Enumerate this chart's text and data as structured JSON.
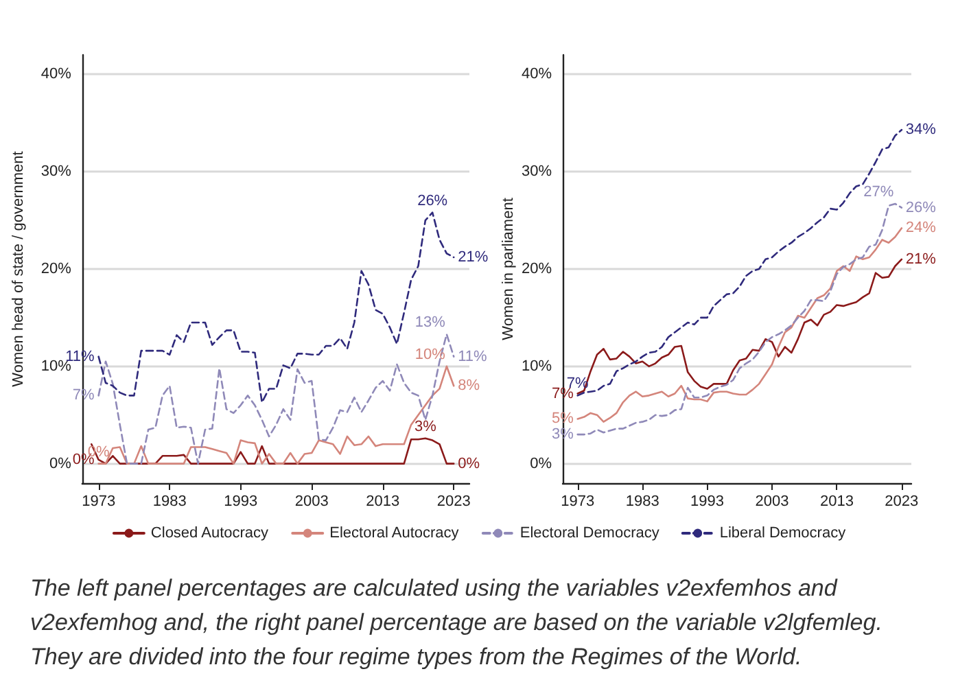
{
  "chart_data": [
    {
      "type": "line",
      "ylabel": "Women head of state / government",
      "x": [
        1973,
        1974,
        1975,
        1976,
        1977,
        1978,
        1979,
        1980,
        1981,
        1982,
        1983,
        1984,
        1985,
        1986,
        1987,
        1988,
        1989,
        1990,
        1991,
        1992,
        1993,
        1994,
        1995,
        1996,
        1997,
        1998,
        1999,
        2000,
        2001,
        2002,
        2003,
        2004,
        2005,
        2006,
        2007,
        2008,
        2009,
        2010,
        2011,
        2012,
        2013,
        2014,
        2015,
        2016,
        2017,
        2018,
        2019,
        2020,
        2021,
        2022,
        2023
      ],
      "xlim": [
        1970.7,
        2025.2
      ],
      "xticks": [
        1973,
        1983,
        1993,
        2003,
        2013,
        2023
      ],
      "ylim": [
        -2,
        42
      ],
      "yticks": [
        {
          "value": 0,
          "label": "0%"
        },
        {
          "value": 10,
          "label": "10%"
        },
        {
          "value": 20,
          "label": "20%"
        },
        {
          "value": 30,
          "label": "30%"
        },
        {
          "value": 40,
          "label": "40%"
        }
      ],
      "grid": "y",
      "legend": false,
      "marker": "none",
      "series": [
        {
          "color": "#8b1a1a",
          "line_style": "solid",
          "x": [
            1972,
            1973,
            1974,
            1975,
            1976,
            1977,
            1978,
            1979,
            1980,
            1981,
            1982,
            1983,
            1984,
            1985,
            1986,
            1987,
            1988,
            1989,
            1990,
            1991,
            1992,
            1993,
            1994,
            1995,
            1996,
            1997,
            1998,
            1999,
            2000,
            2001,
            2002,
            2003,
            2004,
            2005,
            2006,
            2007,
            2008,
            2009,
            2010,
            2011,
            2012,
            2013,
            2014,
            2015,
            2016,
            2017,
            2018,
            2019,
            2020,
            2021,
            2022,
            2023
          ],
          "values": [
            2,
            0.4,
            0,
            0.8,
            0,
            0,
            0,
            0,
            0,
            0,
            0.8,
            0.8,
            0.8,
            0.9,
            0,
            0,
            0,
            0,
            0,
            0,
            0,
            1.2,
            0,
            0,
            1.8,
            0,
            0,
            0,
            0,
            0,
            0,
            0,
            0,
            0,
            0,
            0,
            0,
            0,
            0,
            0,
            0,
            0,
            0,
            0,
            0,
            2.5,
            2.5,
            2.6,
            2.4,
            2,
            0,
            0
          ],
          "value_labels": [
            null,
            "0%",
            null,
            null,
            null,
            null,
            null,
            null,
            null,
            null,
            null,
            null,
            null,
            null,
            null,
            null,
            null,
            null,
            null,
            null,
            null,
            null,
            null,
            null,
            null,
            null,
            null,
            null,
            null,
            null,
            null,
            null,
            null,
            null,
            null,
            null,
            null,
            null,
            null,
            null,
            null,
            null,
            null,
            null,
            null,
            null,
            null,
            "3%",
            null,
            null,
            null,
            "0%"
          ]
        },
        {
          "color": "#d4857b",
          "line_style": "solid",
          "values": [
            0,
            0,
            1.6,
            1.7,
            0,
            0,
            1.8,
            0,
            0,
            0,
            0,
            0,
            0,
            1.7,
            1.7,
            1.7,
            1.5,
            1.3,
            1.1,
            0,
            2.4,
            2.2,
            2.1,
            0,
            1,
            0,
            0,
            1.1,
            0,
            1,
            1.1,
            2.4,
            2.2,
            2,
            1,
            2.8,
            1.9,
            2,
            2.8,
            1.8,
            2,
            2,
            2,
            2,
            4,
            5,
            6,
            7,
            7.7,
            10,
            8
          ],
          "value_labels": [
            "0%",
            null,
            null,
            null,
            null,
            null,
            null,
            null,
            null,
            null,
            null,
            null,
            null,
            null,
            null,
            null,
            null,
            null,
            null,
            null,
            null,
            null,
            null,
            null,
            null,
            null,
            null,
            null,
            null,
            null,
            null,
            null,
            null,
            null,
            null,
            null,
            null,
            null,
            null,
            null,
            null,
            null,
            null,
            null,
            null,
            null,
            null,
            null,
            null,
            "10%",
            "8%"
          ]
        },
        {
          "color": "#8f89b8",
          "line_style": "dashed",
          "values": [
            7,
            10.5,
            8.2,
            4,
            0,
            0,
            0,
            3.5,
            3.7,
            7,
            8,
            3.7,
            3.8,
            3.7,
            0,
            3.5,
            3.6,
            9.8,
            5.6,
            5.2,
            6,
            7,
            6,
            4.5,
            2.8,
            4,
            5.6,
            4.5,
            9.7,
            8.3,
            8.5,
            2.5,
            2.4,
            3.7,
            5.5,
            5.3,
            6.8,
            5.3,
            6.5,
            7.8,
            8.5,
            7.5,
            10.2,
            8.3,
            7.3,
            7,
            4.5,
            7,
            10.5,
            13.3,
            11
          ],
          "value_labels": [
            "7%",
            null,
            null,
            null,
            null,
            null,
            null,
            null,
            null,
            null,
            null,
            null,
            null,
            null,
            null,
            null,
            null,
            null,
            null,
            null,
            null,
            null,
            null,
            null,
            null,
            null,
            null,
            null,
            null,
            null,
            null,
            null,
            null,
            null,
            null,
            null,
            null,
            null,
            null,
            null,
            null,
            null,
            null,
            null,
            null,
            null,
            null,
            null,
            null,
            "13%",
            "11%"
          ]
        },
        {
          "color": "#2f2a7c",
          "line_style": "dashed",
          "values": [
            11,
            8.3,
            8,
            7.3,
            7,
            7,
            11.6,
            11.6,
            11.6,
            11.6,
            11.2,
            13.2,
            12.5,
            14.5,
            14.5,
            14.5,
            12.2,
            13,
            13.7,
            13.7,
            11.5,
            11.5,
            11.4,
            6.3,
            7.7,
            7.7,
            10.1,
            9.8,
            11.3,
            11.3,
            11.2,
            11.2,
            12.1,
            12.1,
            12.9,
            11.8,
            14.5,
            19.8,
            18.4,
            15.8,
            15.4,
            14,
            12.3,
            15.5,
            18.9,
            20.3,
            25,
            25.8,
            23,
            21.6,
            21.2
          ],
          "value_labels": [
            "11%",
            null,
            null,
            null,
            null,
            null,
            null,
            null,
            null,
            null,
            null,
            null,
            null,
            null,
            null,
            null,
            null,
            null,
            null,
            null,
            null,
            null,
            null,
            null,
            null,
            null,
            null,
            null,
            null,
            null,
            null,
            null,
            null,
            null,
            null,
            null,
            null,
            null,
            null,
            null,
            null,
            null,
            null,
            null,
            null,
            null,
            null,
            "26%",
            null,
            null,
            "21%"
          ]
        }
      ]
    },
    {
      "type": "line",
      "ylabel": "Women in parliament",
      "x": [
        1973,
        1974,
        1975,
        1976,
        1977,
        1978,
        1979,
        1980,
        1981,
        1982,
        1983,
        1984,
        1985,
        1986,
        1987,
        1988,
        1989,
        1990,
        1991,
        1992,
        1993,
        1994,
        1995,
        1996,
        1997,
        1998,
        1999,
        2000,
        2001,
        2002,
        2003,
        2004,
        2005,
        2006,
        2007,
        2008,
        2009,
        2010,
        2011,
        2012,
        2013,
        2014,
        2015,
        2016,
        2017,
        2018,
        2019,
        2020,
        2021,
        2022,
        2023
      ],
      "xlim": [
        1970.7,
        2024.5
      ],
      "xticks": [
        1973,
        1983,
        1993,
        2003,
        2013,
        2023
      ],
      "ylim": [
        -2,
        42
      ],
      "yticks": [
        {
          "value": 0,
          "label": "0%"
        },
        {
          "value": 10,
          "label": "10%"
        },
        {
          "value": 20,
          "label": "20%"
        },
        {
          "value": 30,
          "label": "30%"
        },
        {
          "value": 40,
          "label": "40%"
        }
      ],
      "grid": "y",
      "legend": "bottom",
      "marker": "none",
      "annotations": [
        "The left panel percentages are calculated using the variables v2exfemhos and v2exfemhog and, the right panel percentage are based on the variable v2lgfemleg. They are divided into the four regime types from the Regimes of the World."
      ],
      "series": [
        {
          "name": "Closed Autocracy",
          "color": "#8b1a1a",
          "line_style": "solid",
          "values": [
            7.2,
            7.5,
            9.5,
            11.2,
            11.8,
            10.7,
            10.8,
            11.5,
            11,
            10.3,
            10.5,
            10,
            10.3,
            10.9,
            11.2,
            12,
            12.1,
            9.4,
            8.5,
            7.9,
            7.7,
            8.2,
            8.2,
            8.2,
            9.6,
            10.6,
            10.8,
            11.7,
            11.6,
            12.8,
            12.5,
            11,
            12,
            11.4,
            12.8,
            14.5,
            14.8,
            14.2,
            15.3,
            15.6,
            16.3,
            16.2,
            16.4,
            16.6,
            17.1,
            17.5,
            19.6,
            19.1,
            19.2,
            20.3,
            21
          ],
          "value_labels": [
            "7%",
            null,
            null,
            null,
            null,
            null,
            null,
            null,
            null,
            null,
            null,
            null,
            null,
            null,
            null,
            null,
            null,
            null,
            null,
            null,
            null,
            null,
            null,
            null,
            null,
            null,
            null,
            null,
            null,
            null,
            null,
            null,
            null,
            null,
            null,
            null,
            null,
            null,
            null,
            null,
            null,
            null,
            null,
            null,
            null,
            null,
            null,
            null,
            null,
            null,
            "21%"
          ]
        },
        {
          "name": "Electoral Autocracy",
          "color": "#d4857b",
          "line_style": "solid",
          "values": [
            4.6,
            4.8,
            5.2,
            5,
            4.3,
            4.7,
            5.2,
            6.3,
            7,
            7.4,
            6.9,
            7,
            7.2,
            7.4,
            6.9,
            7.2,
            8,
            6.7,
            6.6,
            6.6,
            6.4,
            7.3,
            7.4,
            7.4,
            7.2,
            7.1,
            7.1,
            7.6,
            8.2,
            9.2,
            10.2,
            12,
            13.5,
            14,
            15.2,
            15,
            16,
            17,
            17.3,
            18,
            19.8,
            20.3,
            19.8,
            21.3,
            21,
            21.2,
            22,
            23,
            22.7,
            23.3,
            24.2
          ],
          "value_labels": [
            "5%",
            null,
            null,
            null,
            null,
            null,
            null,
            null,
            null,
            null,
            null,
            null,
            null,
            null,
            null,
            null,
            null,
            null,
            null,
            null,
            null,
            null,
            null,
            null,
            null,
            null,
            null,
            null,
            null,
            null,
            null,
            null,
            null,
            null,
            null,
            null,
            null,
            null,
            null,
            null,
            null,
            null,
            null,
            null,
            null,
            null,
            null,
            null,
            null,
            null,
            "24%"
          ]
        },
        {
          "name": "Electoral Democracy",
          "color": "#8f89b8",
          "line_style": "dashed",
          "values": [
            3,
            3,
            3.1,
            3.5,
            3.2,
            3.4,
            3.6,
            3.6,
            3.9,
            4.2,
            4.3,
            4.5,
            5,
            4.9,
            5,
            5.5,
            5.6,
            7.8,
            6.8,
            6.8,
            7,
            7.6,
            7.9,
            8.1,
            8.6,
            9.8,
            10.3,
            10.7,
            11.5,
            12.5,
            13,
            13.3,
            13.7,
            14.2,
            15,
            15.7,
            16.8,
            16.8,
            16.7,
            17.7,
            19.5,
            20.2,
            20.5,
            21,
            21.2,
            22.3,
            22.5,
            24,
            26.5,
            26.7,
            26.3
          ],
          "value_labels": [
            "3%",
            null,
            null,
            null,
            null,
            null,
            null,
            null,
            null,
            null,
            null,
            null,
            null,
            null,
            null,
            null,
            null,
            null,
            null,
            null,
            null,
            null,
            null,
            null,
            null,
            null,
            null,
            null,
            null,
            null,
            null,
            null,
            null,
            null,
            null,
            null,
            null,
            null,
            null,
            null,
            null,
            null,
            null,
            null,
            null,
            null,
            null,
            null,
            null,
            "27%",
            "26%"
          ]
        },
        {
          "name": "Liberal Democracy",
          "color": "#2f2a7c",
          "line_style": "dashed",
          "values": [
            7,
            7.3,
            7.4,
            7.5,
            8,
            8.2,
            9.5,
            9.8,
            10.2,
            10.5,
            11,
            11.4,
            11.5,
            12,
            13,
            13.5,
            14,
            14.5,
            14.3,
            15,
            15,
            16.2,
            16.8,
            17.4,
            17.5,
            18.2,
            19.3,
            19.8,
            20,
            21,
            21.2,
            21.8,
            22.3,
            22.7,
            23.3,
            23.7,
            24.2,
            24.8,
            25.3,
            26.2,
            26.1,
            26.8,
            27.8,
            28.5,
            28.7,
            29.8,
            31,
            32.3,
            32.5,
            33.7,
            34.3
          ],
          "value_labels": [
            "7%",
            null,
            null,
            null,
            null,
            null,
            null,
            null,
            null,
            null,
            null,
            null,
            null,
            null,
            null,
            null,
            null,
            null,
            null,
            null,
            null,
            null,
            null,
            null,
            null,
            null,
            null,
            null,
            null,
            null,
            null,
            null,
            null,
            null,
            null,
            null,
            null,
            null,
            null,
            null,
            null,
            null,
            null,
            null,
            null,
            null,
            null,
            null,
            null,
            null,
            "34%"
          ]
        }
      ]
    }
  ]
}
